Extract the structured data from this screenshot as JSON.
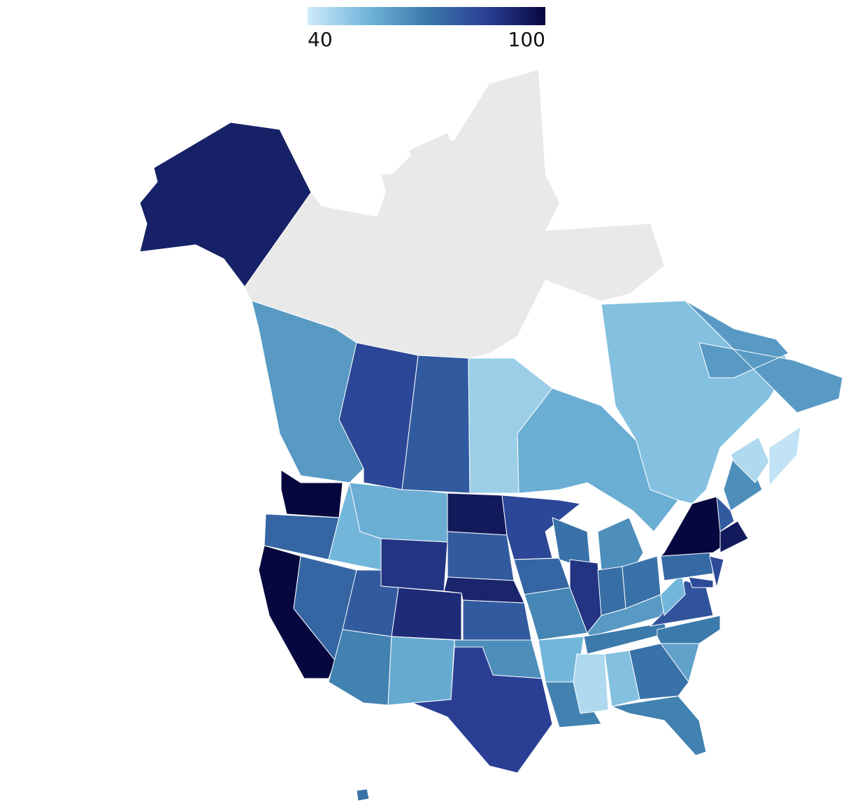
{
  "chart_data": {
    "type": "choropleth",
    "clim": [
      40,
      100
    ],
    "cticks": [
      40,
      100
    ],
    "colorscale": [
      [
        0,
        "#cdeaf9"
      ],
      [
        0.25,
        "#72b6da"
      ],
      [
        0.5,
        "#3b7aab"
      ],
      [
        0.75,
        "#2a3f94"
      ],
      [
        1,
        "#07073f"
      ]
    ],
    "missing_color": "#e9e9e9",
    "values": [
      100,
      75,
      100,
      75,
      55,
      57,
      88,
      78,
      90,
      68,
      58,
      95,
      78,
      92,
      78,
      65,
      85,
      83,
      75,
      67,
      55,
      68,
      72,
      88,
      65,
      73,
      72,
      62,
      70,
      45,
      52,
      72,
      68,
      60,
      70,
      80,
      55,
      74,
      100,
      82,
      82,
      65,
      78,
      95,
      93,
      72,
      62,
      83,
      78,
      48,
      57,
      52,
      62,
      45,
      42
    ]
  }
}
